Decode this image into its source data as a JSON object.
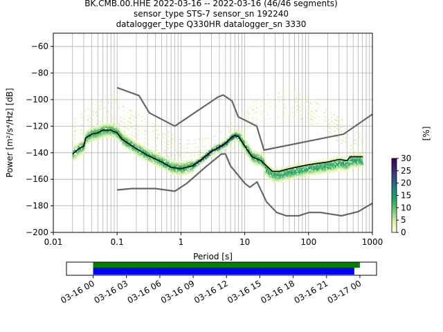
{
  "chart_data": {
    "type": "heatmap",
    "title_lines": [
      "BK.CMB.00.HHE   2022-03-16 -- 2022-03-16  (46/46 segments)",
      "sensor_type STS-7 sensor_sn 192240",
      "datalogger_type Q330HR datalogger_sn 3330"
    ],
    "xlabel": "Period [s]",
    "ylabel": "Power [m²/s⁴/Hz] [dB]",
    "xscale": "log",
    "xlim": [
      0.01,
      1000
    ],
    "ylim": [
      -200,
      -50
    ],
    "x_ticks": [
      0.01,
      0.1,
      1,
      10,
      100,
      1000
    ],
    "x_tick_labels": [
      "0.01",
      "0.1",
      "1",
      "10",
      "100",
      "1000"
    ],
    "y_ticks": [
      -200,
      -180,
      -160,
      -140,
      -120,
      -100,
      -80,
      -60
    ],
    "y_tick_labels": [
      "−200",
      "−180",
      "−160",
      "−140",
      "−120",
      "−100",
      "−80",
      "−60"
    ],
    "grid": true,
    "colorbar": {
      "label": "[%]",
      "range": [
        0,
        30
      ],
      "ticks": [
        0,
        5,
        10,
        15,
        20,
        25,
        30
      ],
      "tick_labels": [
        "0",
        "5",
        "10",
        "15",
        "20",
        "25",
        "30"
      ]
    },
    "noise_models": {
      "high": [
        [
          0.1,
          -91
        ],
        [
          0.22,
          -97
        ],
        [
          0.32,
          -110
        ],
        [
          0.8,
          -120
        ],
        [
          3.8,
          -98
        ],
        [
          4.6,
          -96.5
        ],
        [
          6.3,
          -101
        ],
        [
          7.9,
          -113
        ],
        [
          15.4,
          -120
        ],
        [
          20,
          -138
        ],
        [
          354,
          -126
        ],
        [
          1000,
          -111
        ]
      ],
      "low": [
        [
          0.1,
          -168
        ],
        [
          0.17,
          -167
        ],
        [
          0.4,
          -167
        ],
        [
          0.8,
          -169
        ],
        [
          1.24,
          -163
        ],
        [
          2.4,
          -151
        ],
        [
          4.3,
          -141
        ],
        [
          5,
          -141
        ],
        [
          6,
          -150
        ],
        [
          10,
          -163
        ],
        [
          12,
          -166
        ],
        [
          15.6,
          -162
        ],
        [
          21.9,
          -177
        ],
        [
          31.6,
          -185
        ],
        [
          45,
          -187.5
        ],
        [
          70,
          -187.5
        ],
        [
          101,
          -185
        ],
        [
          154,
          -185
        ],
        [
          328,
          -187.5
        ],
        [
          600,
          -184.4
        ],
        [
          1000,
          -178
        ]
      ]
    },
    "mean_curve": [
      [
        0.02,
        -141
      ],
      [
        0.025,
        -137
      ],
      [
        0.03,
        -135
      ],
      [
        0.032,
        -129
      ],
      [
        0.04,
        -126
      ],
      [
        0.05,
        -125
      ],
      [
        0.06,
        -123
      ],
      [
        0.08,
        -123
      ],
      [
        0.1,
        -125
      ],
      [
        0.12,
        -130
      ],
      [
        0.2,
        -137
      ],
      [
        0.3,
        -142
      ],
      [
        0.5,
        -147
      ],
      [
        0.7,
        -151
      ],
      [
        1,
        -152
      ],
      [
        1.5,
        -150
      ],
      [
        2,
        -146
      ],
      [
        3,
        -139
      ],
      [
        5,
        -133
      ],
      [
        6,
        -129
      ],
      [
        7,
        -127
      ],
      [
        8,
        -128
      ],
      [
        10,
        -135
      ],
      [
        13,
        -143
      ],
      [
        18,
        -146
      ],
      [
        22,
        -150
      ],
      [
        27,
        -154
      ],
      [
        35,
        -154
      ],
      [
        50,
        -152
      ],
      [
        100,
        -149
      ],
      [
        200,
        -147
      ],
      [
        300,
        -145
      ],
      [
        400,
        -146
      ],
      [
        450,
        -143
      ],
      [
        700,
        -143
      ]
    ],
    "upper_mode_curve": [
      [
        0.02,
        -125
      ],
      [
        0.03,
        -118
      ],
      [
        0.05,
        -108
      ],
      [
        0.08,
        -105
      ],
      [
        0.1,
        -112
      ],
      [
        0.3,
        -125
      ],
      [
        1,
        -140
      ],
      [
        3,
        -138
      ],
      [
        8,
        -125
      ],
      [
        12,
        -112
      ],
      [
        20,
        -106
      ],
      [
        50,
        -103
      ],
      [
        100,
        -108
      ],
      [
        200,
        -118
      ],
      [
        500,
        -130
      ],
      [
        700,
        -133
      ]
    ],
    "timeline": {
      "tick_labels": [
        "03-16 00",
        "03-16 03",
        "03-16 06",
        "03-16 09",
        "03-16 12",
        "03-16 15",
        "03-16 18",
        "03-16 21",
        "03-17 00"
      ],
      "range_hours": [
        -2.4,
        25.5
      ],
      "coverage_green_hours": [
        0,
        24
      ],
      "coverage_blue_hours": [
        0,
        23.5
      ],
      "colors": {
        "green": "#008000",
        "blue": "#0000ff"
      }
    }
  }
}
